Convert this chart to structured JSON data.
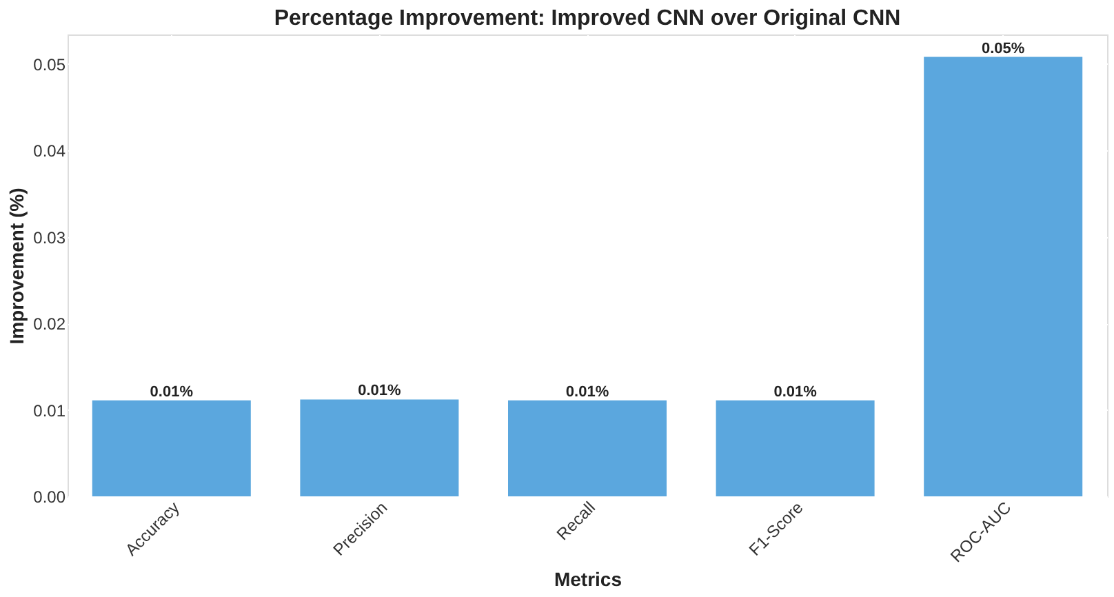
{
  "chart_data": {
    "type": "bar",
    "title": "Percentage Improvement: Improved CNN over Original CNN",
    "xlabel": "Metrics",
    "ylabel": "Improvement (%)",
    "categories": [
      "Accuracy",
      "Precision",
      "Recall",
      "F1-Score",
      "ROC-AUC"
    ],
    "values": [
      0.0111,
      0.0112,
      0.0111,
      0.0111,
      0.0508
    ],
    "value_labels": [
      "0.01%",
      "0.01%",
      "0.01%",
      "0.01%",
      "0.05%"
    ],
    "color": "#5ba7de",
    "ylim": [
      0,
      0.0534
    ],
    "yticks": [
      {
        "value": 0,
        "label": "0.00"
      },
      0.01,
      0.02,
      0.03,
      0.04,
      0.05
    ],
    "grid": true
  }
}
